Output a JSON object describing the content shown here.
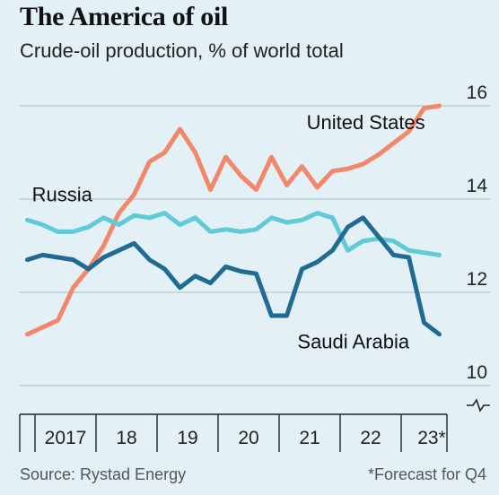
{
  "chart_data": {
    "type": "line",
    "title": "The America of oil",
    "subtitle": "Crude-oil production, % of world total",
    "source": "Source: Rystad Energy",
    "note": "*Forecast for Q4",
    "ylim": [
      10,
      16.2
    ],
    "yticks": [
      10,
      12,
      14,
      16
    ],
    "xlim": [
      2016.75,
      2023.75
    ],
    "xticks": [
      {
        "label": "2017",
        "x": 2017.5
      },
      {
        "label": "18",
        "x": 2018.5
      },
      {
        "label": "19",
        "x": 2019.5
      },
      {
        "label": "20",
        "x": 2020.5
      },
      {
        "label": "21",
        "x": 2021.5
      },
      {
        "label": "22",
        "x": 2022.5
      },
      {
        "label": "23*",
        "x": 2023.5
      }
    ],
    "grid": true,
    "series": [
      {
        "name": "United States",
        "color": "#f2876a",
        "x": [
          2016.875,
          2017.125,
          2017.375,
          2017.625,
          2017.875,
          2018.125,
          2018.375,
          2018.625,
          2018.875,
          2019.125,
          2019.375,
          2019.625,
          2019.875,
          2020.125,
          2020.375,
          2020.625,
          2020.875,
          2021.125,
          2021.375,
          2021.625,
          2021.875,
          2022.125,
          2022.375,
          2022.625,
          2022.875,
          2023.125,
          2023.375,
          2023.625
        ],
        "values": [
          11.1,
          11.25,
          11.4,
          12.1,
          12.5,
          13.0,
          13.7,
          14.1,
          14.8,
          15.0,
          15.5,
          15.0,
          14.2,
          14.9,
          14.5,
          14.2,
          14.9,
          14.3,
          14.7,
          14.25,
          14.6,
          14.65,
          14.75,
          14.95,
          15.2,
          15.45,
          15.95,
          16.0
        ]
      },
      {
        "name": "Russia",
        "color": "#5ecbd6",
        "x": [
          2016.875,
          2017.125,
          2017.375,
          2017.625,
          2017.875,
          2018.125,
          2018.375,
          2018.625,
          2018.875,
          2019.125,
          2019.375,
          2019.625,
          2019.875,
          2020.125,
          2020.375,
          2020.625,
          2020.875,
          2021.125,
          2021.375,
          2021.625,
          2021.875,
          2022.125,
          2022.375,
          2022.625,
          2022.875,
          2023.125,
          2023.375,
          2023.625
        ],
        "values": [
          13.55,
          13.45,
          13.3,
          13.3,
          13.4,
          13.6,
          13.45,
          13.65,
          13.6,
          13.7,
          13.45,
          13.6,
          13.3,
          13.35,
          13.3,
          13.35,
          13.6,
          13.5,
          13.55,
          13.7,
          13.6,
          12.9,
          13.1,
          13.15,
          13.1,
          12.9,
          12.85,
          12.8
        ]
      },
      {
        "name": "Saudi Arabia",
        "color": "#1f6b93",
        "x": [
          2016.875,
          2017.125,
          2017.375,
          2017.625,
          2017.875,
          2018.125,
          2018.375,
          2018.625,
          2018.875,
          2019.125,
          2019.375,
          2019.625,
          2019.875,
          2020.125,
          2020.375,
          2020.625,
          2020.875,
          2021.125,
          2021.375,
          2021.625,
          2021.875,
          2022.125,
          2022.375,
          2022.625,
          2022.875,
          2023.125,
          2023.375,
          2023.625
        ],
        "values": [
          12.7,
          12.8,
          12.75,
          12.7,
          12.5,
          12.75,
          12.9,
          13.05,
          12.7,
          12.5,
          12.1,
          12.35,
          12.2,
          12.55,
          12.45,
          12.4,
          11.5,
          11.5,
          12.5,
          12.65,
          12.9,
          13.4,
          13.6,
          13.2,
          12.8,
          12.75,
          11.35,
          11.1
        ]
      }
    ],
    "labels": [
      {
        "text": "United States",
        "series": 0,
        "at": [
          2021.45,
          15.5
        ]
      },
      {
        "text": "Russia",
        "series": 1,
        "at": [
          2016.95,
          13.95
        ]
      },
      {
        "text": "Saudi Arabia",
        "series": 2,
        "at": [
          2021.3,
          10.8
        ]
      }
    ]
  }
}
